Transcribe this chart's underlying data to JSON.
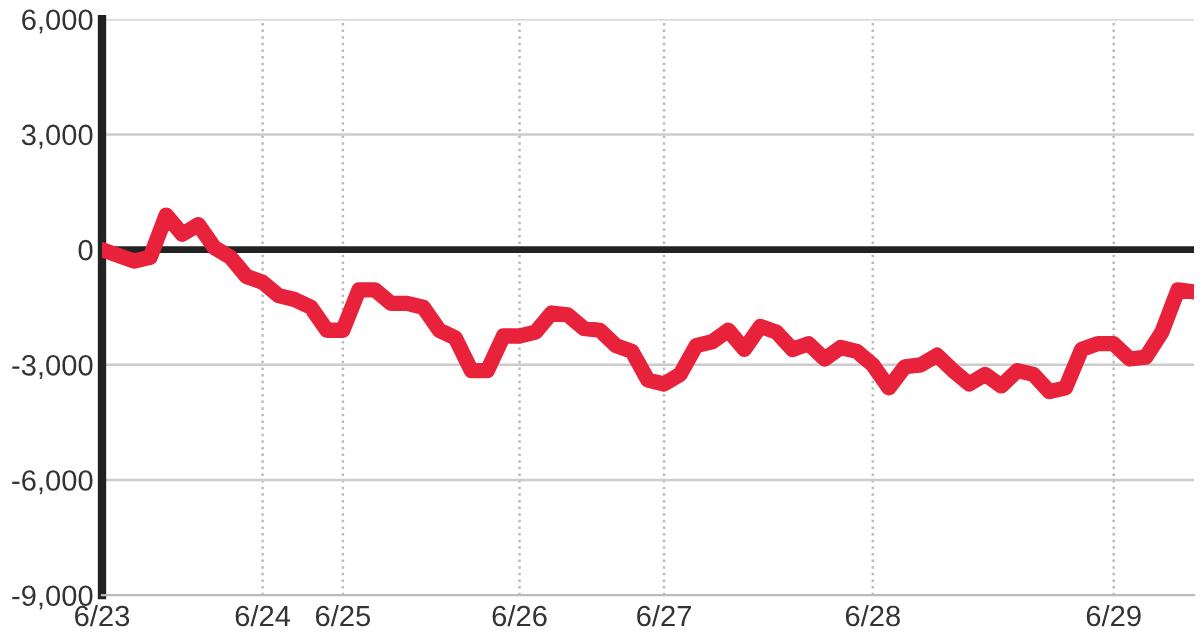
{
  "chart_data": {
    "type": "line",
    "categories": [
      "6/23",
      null,
      null,
      null,
      null,
      null,
      null,
      null,
      null,
      null,
      "6/24",
      null,
      null,
      null,
      null,
      "6/25",
      null,
      null,
      null,
      null,
      null,
      null,
      null,
      null,
      null,
      null,
      "6/26",
      null,
      null,
      null,
      null,
      null,
      null,
      null,
      null,
      "6/27",
      null,
      null,
      null,
      null,
      null,
      null,
      null,
      null,
      null,
      null,
      null,
      null,
      "6/28",
      null,
      null,
      null,
      null,
      null,
      null,
      null,
      null,
      null,
      null,
      null,
      null,
      null,
      null,
      "6/29",
      null,
      null,
      null,
      null,
      null
    ],
    "series": [
      {
        "color": "#e8223a",
        "values": [
          0,
          -150,
          -300,
          -200,
          900,
          400,
          650,
          50,
          -200,
          -700,
          -850,
          -1200,
          -1300,
          -1500,
          -2100,
          -2100,
          -1050,
          -1050,
          -1400,
          -1400,
          -1500,
          -2100,
          -2300,
          -3150,
          -3150,
          -2250,
          -2250,
          -2150,
          -1650,
          -1700,
          -2050,
          -2100,
          -2500,
          -2650,
          -3400,
          -3500,
          -3250,
          -2500,
          -2400,
          -2100,
          -2600,
          -2000,
          -2150,
          -2600,
          -2450,
          -2850,
          -2550,
          -2650,
          -3000,
          -3600,
          -3050,
          -3000,
          -2750,
          -3150,
          -3500,
          -3250,
          -3550,
          -3150,
          -3250,
          -3700,
          -3600,
          -2600,
          -2450,
          -2450,
          -2850,
          -2800,
          -2150,
          -1050,
          -1100
        ]
      }
    ],
    "ylim": [
      -9000,
      6000
    ],
    "yticks": [
      {
        "value": -9000,
        "label": "-9,000"
      },
      {
        "value": -6000,
        "label": "-6,000"
      },
      {
        "value": -3000,
        "label": "-3,000"
      },
      {
        "value": 0,
        "label": "0"
      },
      {
        "value": 3000,
        "label": "3,000"
      },
      {
        "value": 6000,
        "label": "6,000"
      }
    ],
    "ref_lines": [
      {
        "axis": "y",
        "value": 0,
        "color": "#222222"
      }
    ],
    "grid": true,
    "marker": "none",
    "line_style": "solid",
    "legend": false
  }
}
